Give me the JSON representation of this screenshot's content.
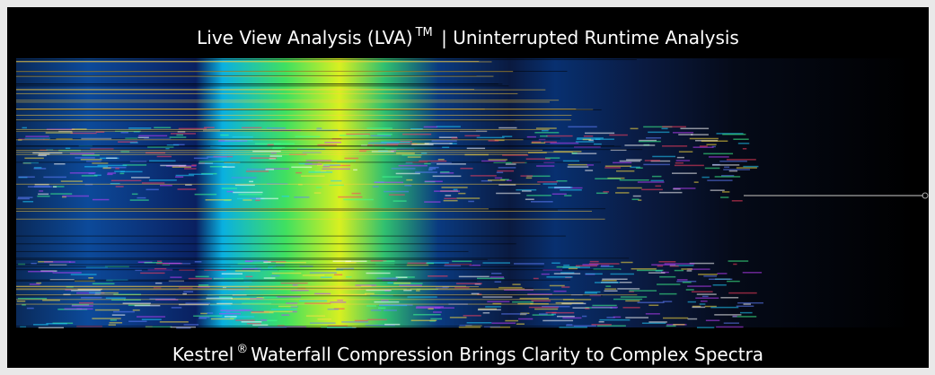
{
  "header": {
    "title": "Live View Analysis (LVA)",
    "title_mark": "TM",
    "subtitle": "| Uninterrupted Runtime Analysis"
  },
  "footer": {
    "brand": "Kestrel",
    "brand_mark": "®",
    "caption": "Waterfall Compression Brings Clarity to Complex Spectra"
  }
}
